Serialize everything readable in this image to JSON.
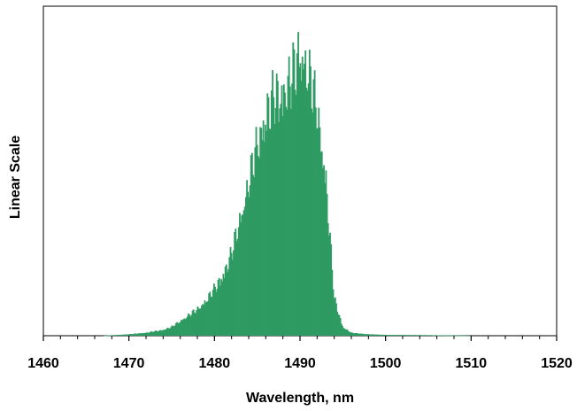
{
  "chart_data": {
    "type": "area",
    "title": "",
    "xlabel": "Wavelength, nm",
    "ylabel": "Linear Scale",
    "xlim": [
      1460,
      1520
    ],
    "ylim": [
      0,
      1
    ],
    "xticks": [
      1460,
      1470,
      1480,
      1490,
      1500,
      1510,
      1520
    ],
    "y_tick_labels": "none",
    "grid": false,
    "legend": "none",
    "fill_color": "#2E9B62",
    "series": [
      {
        "x": [
          1467,
          1470,
          1472,
          1474,
          1475,
          1476,
          1477,
          1478,
          1479,
          1480,
          1481,
          1482,
          1483,
          1484,
          1485,
          1486,
          1487,
          1488,
          1489,
          1490,
          1490.5,
          1491,
          1492,
          1493,
          1494,
          1495,
          1496,
          1498,
          1500,
          1505,
          1510
        ],
        "y": [
          0.0,
          0.005,
          0.01,
          0.02,
          0.03,
          0.05,
          0.07,
          0.09,
          0.12,
          0.16,
          0.21,
          0.28,
          0.4,
          0.52,
          0.66,
          0.76,
          0.82,
          0.84,
          0.88,
          0.98,
          0.95,
          0.9,
          0.78,
          0.55,
          0.13,
          0.03,
          0.01,
          0.005,
          0.003,
          0.002,
          0.0
        ]
      }
    ]
  }
}
